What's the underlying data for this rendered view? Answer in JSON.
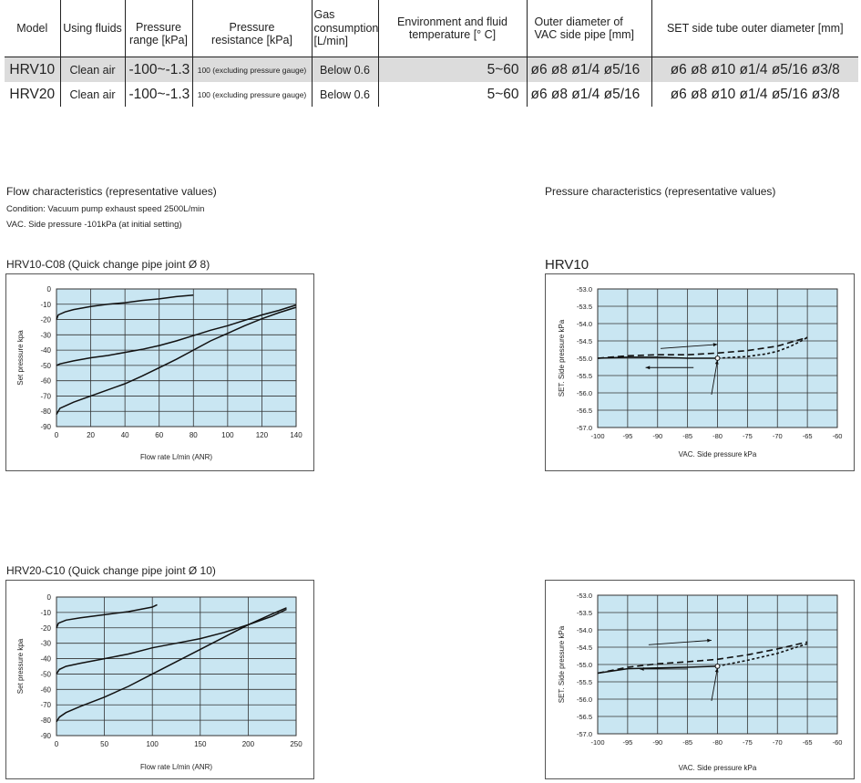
{
  "spec_table": {
    "headers": [
      "Model",
      "Using fluids",
      "Pressure\nrange [kPa]",
      "Pressure\nresistance [kPa]",
      "Gas\nconsumption\n[L/min]",
      "Environment and fluid\ntemperature [° C]",
      "Outer diameter of\nVAC side pipe [mm]",
      "SET side tube outer diameter [mm]"
    ],
    "rows": [
      {
        "model": "HRV10",
        "fluid": "Clean air",
        "range": "-100~-1.3",
        "resistance": "100 (excluding pressure gauge)",
        "consumption": "Below 0.6",
        "temperature": "5~60",
        "vac_pipe": "ø6 ø8 ø1/4 ø5/16",
        "set_tube": "ø6 ø8 ø10 ø1/4 ø5/16 ø3/8"
      },
      {
        "model": "HRV20",
        "fluid": "Clean air",
        "range": "-100~-1.3",
        "resistance": "100 (excluding pressure gauge)",
        "consumption": "Below 0.6",
        "temperature": "5~60",
        "vac_pipe": "ø6 ø8 ø1/4 ø5/16",
        "set_tube": "ø6 ø8 ø10 ø1/4 ø5/16 ø3/8"
      }
    ]
  },
  "flow_section": {
    "heading": "Flow characteristics (representative values)",
    "condition1": "Condition: Vacuum pump exhaust speed 2500L/min",
    "condition2": "VAC. Side pressure -101kPa (at initial setting)"
  },
  "pressure_section": {
    "heading": "Pressure characteristics (representative values)"
  },
  "colors": {
    "plot_bg": "#c9e6f2",
    "grid": "#333333",
    "line": "#111111",
    "table_highlight": "#dcdcdc"
  },
  "chart_data": [
    {
      "id": "hrv10_flow",
      "type": "line",
      "title": "HRV10-C08 (Quick change pipe joint Ø 8)",
      "xlabel": "Flow rate L/min (ANR)",
      "ylabel": "Set pressure kpa",
      "xlim": [
        0,
        140
      ],
      "ylim": [
        -90,
        0
      ],
      "xticks": [
        0,
        20,
        40,
        60,
        80,
        100,
        120,
        140
      ],
      "yticks": [
        0,
        -10,
        -20,
        -30,
        -40,
        -50,
        -60,
        -70,
        -80,
        -90
      ],
      "grid": true,
      "series": [
        {
          "x": [
            0,
            1,
            5,
            10,
            20,
            30,
            40,
            50,
            60,
            70,
            80
          ],
          "y": [
            -20,
            -17,
            -15,
            -13.5,
            -11.5,
            -10,
            -9,
            -7.5,
            -6.5,
            -5,
            -4
          ],
          "style": "solid"
        },
        {
          "x": [
            0,
            2,
            10,
            20,
            30,
            40,
            50,
            60,
            70,
            80,
            90,
            100,
            110,
            120,
            130,
            140
          ],
          "y": [
            -50,
            -49,
            -47,
            -45,
            -43.5,
            -41.5,
            -39.5,
            -37,
            -34,
            -30.5,
            -27,
            -24,
            -20.5,
            -17,
            -14,
            -10.5
          ],
          "style": "solid"
        },
        {
          "x": [
            0,
            2,
            10,
            20,
            30,
            40,
            50,
            60,
            70,
            80,
            90,
            100,
            110,
            120,
            130,
            140
          ],
          "y": [
            -82,
            -78,
            -74,
            -70,
            -66,
            -62,
            -57,
            -51.5,
            -46,
            -40,
            -34,
            -29,
            -24,
            -19.5,
            -15.5,
            -12
          ],
          "style": "solid"
        }
      ]
    },
    {
      "id": "hrv20_flow",
      "type": "line",
      "title": "HRV20-C10 (Quick change pipe joint Ø 10)",
      "xlabel": "Flow rate L/min (ANR)",
      "ylabel": "Set pressure kpa",
      "xlim": [
        0,
        250
      ],
      "ylim": [
        -90,
        0
      ],
      "xticks": [
        0,
        50,
        100,
        150,
        200,
        250
      ],
      "yticks": [
        0,
        -10,
        -20,
        -30,
        -40,
        -50,
        -60,
        -70,
        -80,
        -90
      ],
      "grid": true,
      "series": [
        {
          "x": [
            0,
            2,
            10,
            25,
            50,
            75,
            100,
            105
          ],
          "y": [
            -20,
            -17,
            -15,
            -13.5,
            -11.5,
            -9.5,
            -6.5,
            -5
          ],
          "style": "solid"
        },
        {
          "x": [
            0,
            3,
            10,
            25,
            50,
            75,
            100,
            125,
            150,
            175,
            200,
            225,
            240
          ],
          "y": [
            -50,
            -47,
            -45,
            -43,
            -40,
            -37,
            -33,
            -30,
            -27,
            -23,
            -18,
            -12.5,
            -8
          ],
          "style": "solid"
        },
        {
          "x": [
            0,
            3,
            10,
            25,
            50,
            75,
            100,
            125,
            150,
            175,
            200,
            225,
            240
          ],
          "y": [
            -81,
            -78,
            -75,
            -71,
            -65,
            -58,
            -50,
            -42,
            -34,
            -26,
            -18,
            -11,
            -7
          ],
          "style": "solid"
        }
      ]
    },
    {
      "id": "hrv10_pressure",
      "type": "line",
      "title": "HRV10",
      "xlabel": "VAC. Side pressure kPa",
      "ylabel": "SET. Side pressure kPa",
      "xlim": [
        -100,
        -60
      ],
      "ylim": [
        -57.0,
        -53.0
      ],
      "xticks": [
        -100,
        -95,
        -90,
        -85,
        -80,
        -75,
        -70,
        -65,
        -60
      ],
      "yticks": [
        "-53.0",
        "-53.5",
        "-54.0",
        "-54.5",
        "-55.0",
        "-55.5",
        "-56.0",
        "-56.5",
        "-57.0"
      ],
      "grid": true,
      "series": [
        {
          "x": [
            -100,
            -95,
            -90,
            -85,
            -80
          ],
          "y": [
            -55.0,
            -54.97,
            -54.97,
            -55.0,
            -55.0
          ],
          "style": "solid"
        },
        {
          "x": [
            -100,
            -95,
            -90,
            -85,
            -80,
            -75,
            -70,
            -65
          ],
          "y": [
            -55.0,
            -54.93,
            -54.9,
            -54.9,
            -54.85,
            -54.78,
            -54.65,
            -54.4
          ],
          "style": "dashed"
        },
        {
          "x": [
            -80,
            -75,
            -72,
            -70,
            -68,
            -66,
            -65
          ],
          "y": [
            -55.0,
            -54.95,
            -54.88,
            -54.8,
            -54.67,
            -54.5,
            -54.4
          ],
          "style": "dotted"
        }
      ],
      "annotations": [
        {
          "type": "arrow",
          "from": [
            -89.5,
            -54.72
          ],
          "to": [
            -80,
            -54.6
          ]
        },
        {
          "type": "arrow",
          "from": [
            -84,
            -55.27
          ],
          "to": [
            -92,
            -55.27
          ]
        },
        {
          "type": "arrow",
          "from": [
            -81,
            -56.05
          ],
          "to": [
            -80,
            -55.05
          ]
        },
        {
          "type": "marker",
          "at": [
            -80,
            -55.0
          ]
        }
      ]
    },
    {
      "id": "hrv20_pressure",
      "type": "line",
      "title": "",
      "xlabel": "VAC. Side pressure kPa",
      "ylabel": "SET. Side pressure kPa",
      "xlim": [
        -100,
        -60
      ],
      "ylim": [
        -57.0,
        -53.0
      ],
      "xticks": [
        -100,
        -95,
        -90,
        -85,
        -80,
        -75,
        -70,
        -65,
        -60
      ],
      "yticks": [
        "-53.0",
        "-53.5",
        "-54.0",
        "-54.5",
        "-55.0",
        "-55.5",
        "-56.0",
        "-56.5",
        "-57.0"
      ],
      "grid": true,
      "series": [
        {
          "x": [
            -100,
            -95,
            -90,
            -85,
            -80
          ],
          "y": [
            -55.25,
            -55.12,
            -55.1,
            -55.08,
            -55.05
          ],
          "style": "solid"
        },
        {
          "x": [
            -100,
            -95,
            -90,
            -85,
            -80,
            -75,
            -70,
            -65
          ],
          "y": [
            -55.25,
            -55.08,
            -54.98,
            -54.92,
            -54.85,
            -54.72,
            -54.55,
            -54.35
          ],
          "style": "dashed"
        },
        {
          "x": [
            -80,
            -75,
            -70,
            -65
          ],
          "y": [
            -55.05,
            -54.88,
            -54.68,
            -54.4
          ],
          "style": "dotted"
        }
      ],
      "annotations": [
        {
          "type": "arrow",
          "from": [
            -91.5,
            -54.43
          ],
          "to": [
            -81,
            -54.3
          ]
        },
        {
          "type": "arrow",
          "from": [
            -85,
            -55.13
          ],
          "to": [
            -93,
            -55.13
          ]
        },
        {
          "type": "arrow",
          "from": [
            -81,
            -56.05
          ],
          "to": [
            -80,
            -55.1
          ]
        },
        {
          "type": "marker",
          "at": [
            -80,
            -55.05
          ]
        }
      ]
    }
  ]
}
